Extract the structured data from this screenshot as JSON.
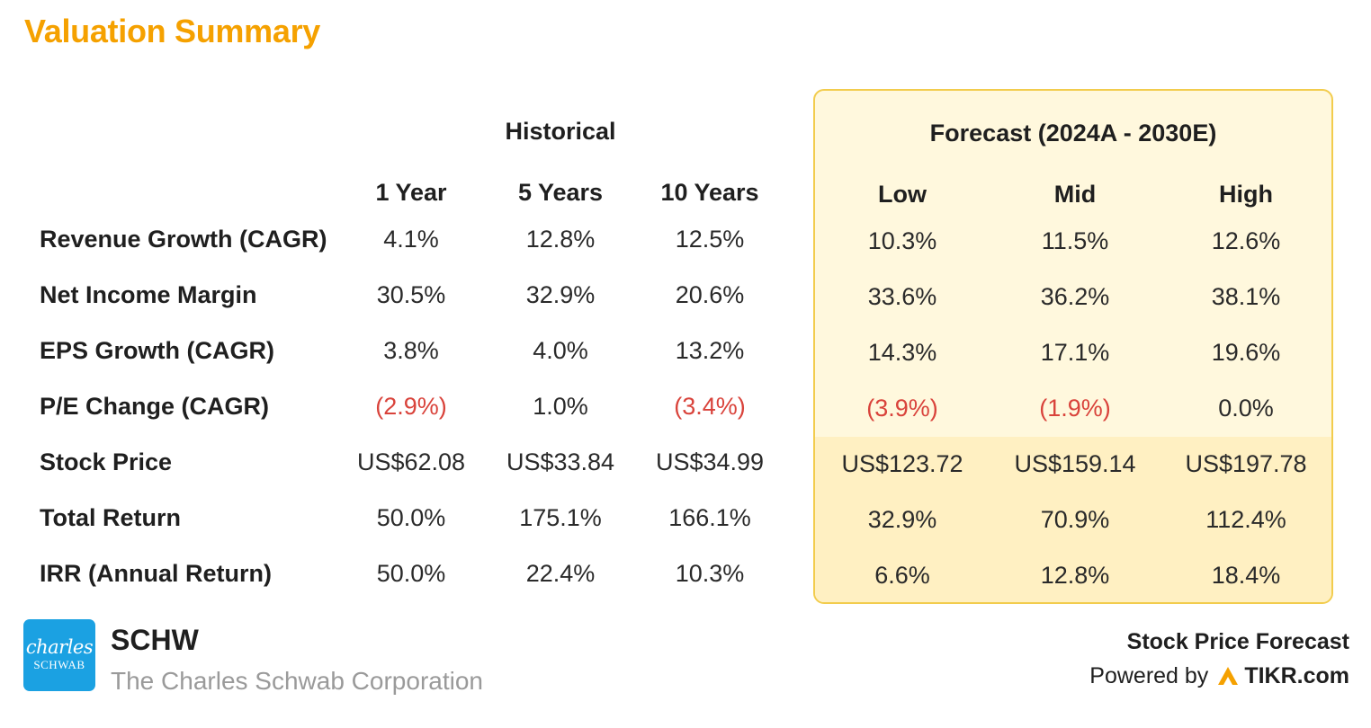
{
  "title": "Valuation Summary",
  "historical_header": "Historical",
  "forecast_header": "Forecast (2024A - 2030E)",
  "columns": [
    "1 Year",
    "5 Years",
    "10 Years",
    "Low",
    "Mid",
    "High"
  ],
  "rows": [
    {
      "label": "Revenue Growth (CAGR)",
      "values": [
        "4.1%",
        "12.8%",
        "12.5%",
        "10.3%",
        "11.5%",
        "12.6%"
      ],
      "negative": [
        false,
        false,
        false,
        false,
        false,
        false
      ]
    },
    {
      "label": "Net Income Margin",
      "values": [
        "30.5%",
        "32.9%",
        "20.6%",
        "33.6%",
        "36.2%",
        "38.1%"
      ],
      "negative": [
        false,
        false,
        false,
        false,
        false,
        false
      ]
    },
    {
      "label": "EPS Growth (CAGR)",
      "values": [
        "3.8%",
        "4.0%",
        "13.2%",
        "14.3%",
        "17.1%",
        "19.6%"
      ],
      "negative": [
        false,
        false,
        false,
        false,
        false,
        false
      ]
    },
    {
      "label": "P/E Change (CAGR)",
      "values": [
        "(2.9%)",
        "1.0%",
        "(3.4%)",
        "(3.9%)",
        "(1.9%)",
        "0.0%"
      ],
      "negative": [
        true,
        false,
        true,
        true,
        true,
        false
      ]
    },
    {
      "label": "Stock Price",
      "values": [
        "US$62.08",
        "US$33.84",
        "US$34.99",
        "US$123.72",
        "US$159.14",
        "US$197.78"
      ],
      "negative": [
        false,
        false,
        false,
        false,
        false,
        false
      ]
    },
    {
      "label": "Total Return",
      "values": [
        "50.0%",
        "175.1%",
        "166.1%",
        "32.9%",
        "70.9%",
        "112.4%"
      ],
      "negative": [
        false,
        false,
        false,
        false,
        false,
        false
      ]
    },
    {
      "label": "IRR (Annual Return)",
      "values": [
        "50.0%",
        "22.4%",
        "10.3%",
        "6.6%",
        "12.8%",
        "18.4%"
      ],
      "negative": [
        false,
        false,
        false,
        false,
        false,
        false
      ]
    }
  ],
  "company": {
    "ticker": "SCHW",
    "name": "The Charles Schwab Corporation",
    "logo_line1": "charles",
    "logo_line2": "SCHWAB"
  },
  "footer": {
    "heading": "Stock Price Forecast",
    "powered_by": "Powered by",
    "brand": "TIKR.com"
  },
  "colors": {
    "title": "#f5a100",
    "negative": "#d9433b",
    "forecast_bg": "#fff8dd",
    "forecast_border": "#f2cc4d",
    "logo_bg": "#1ba1e2"
  }
}
